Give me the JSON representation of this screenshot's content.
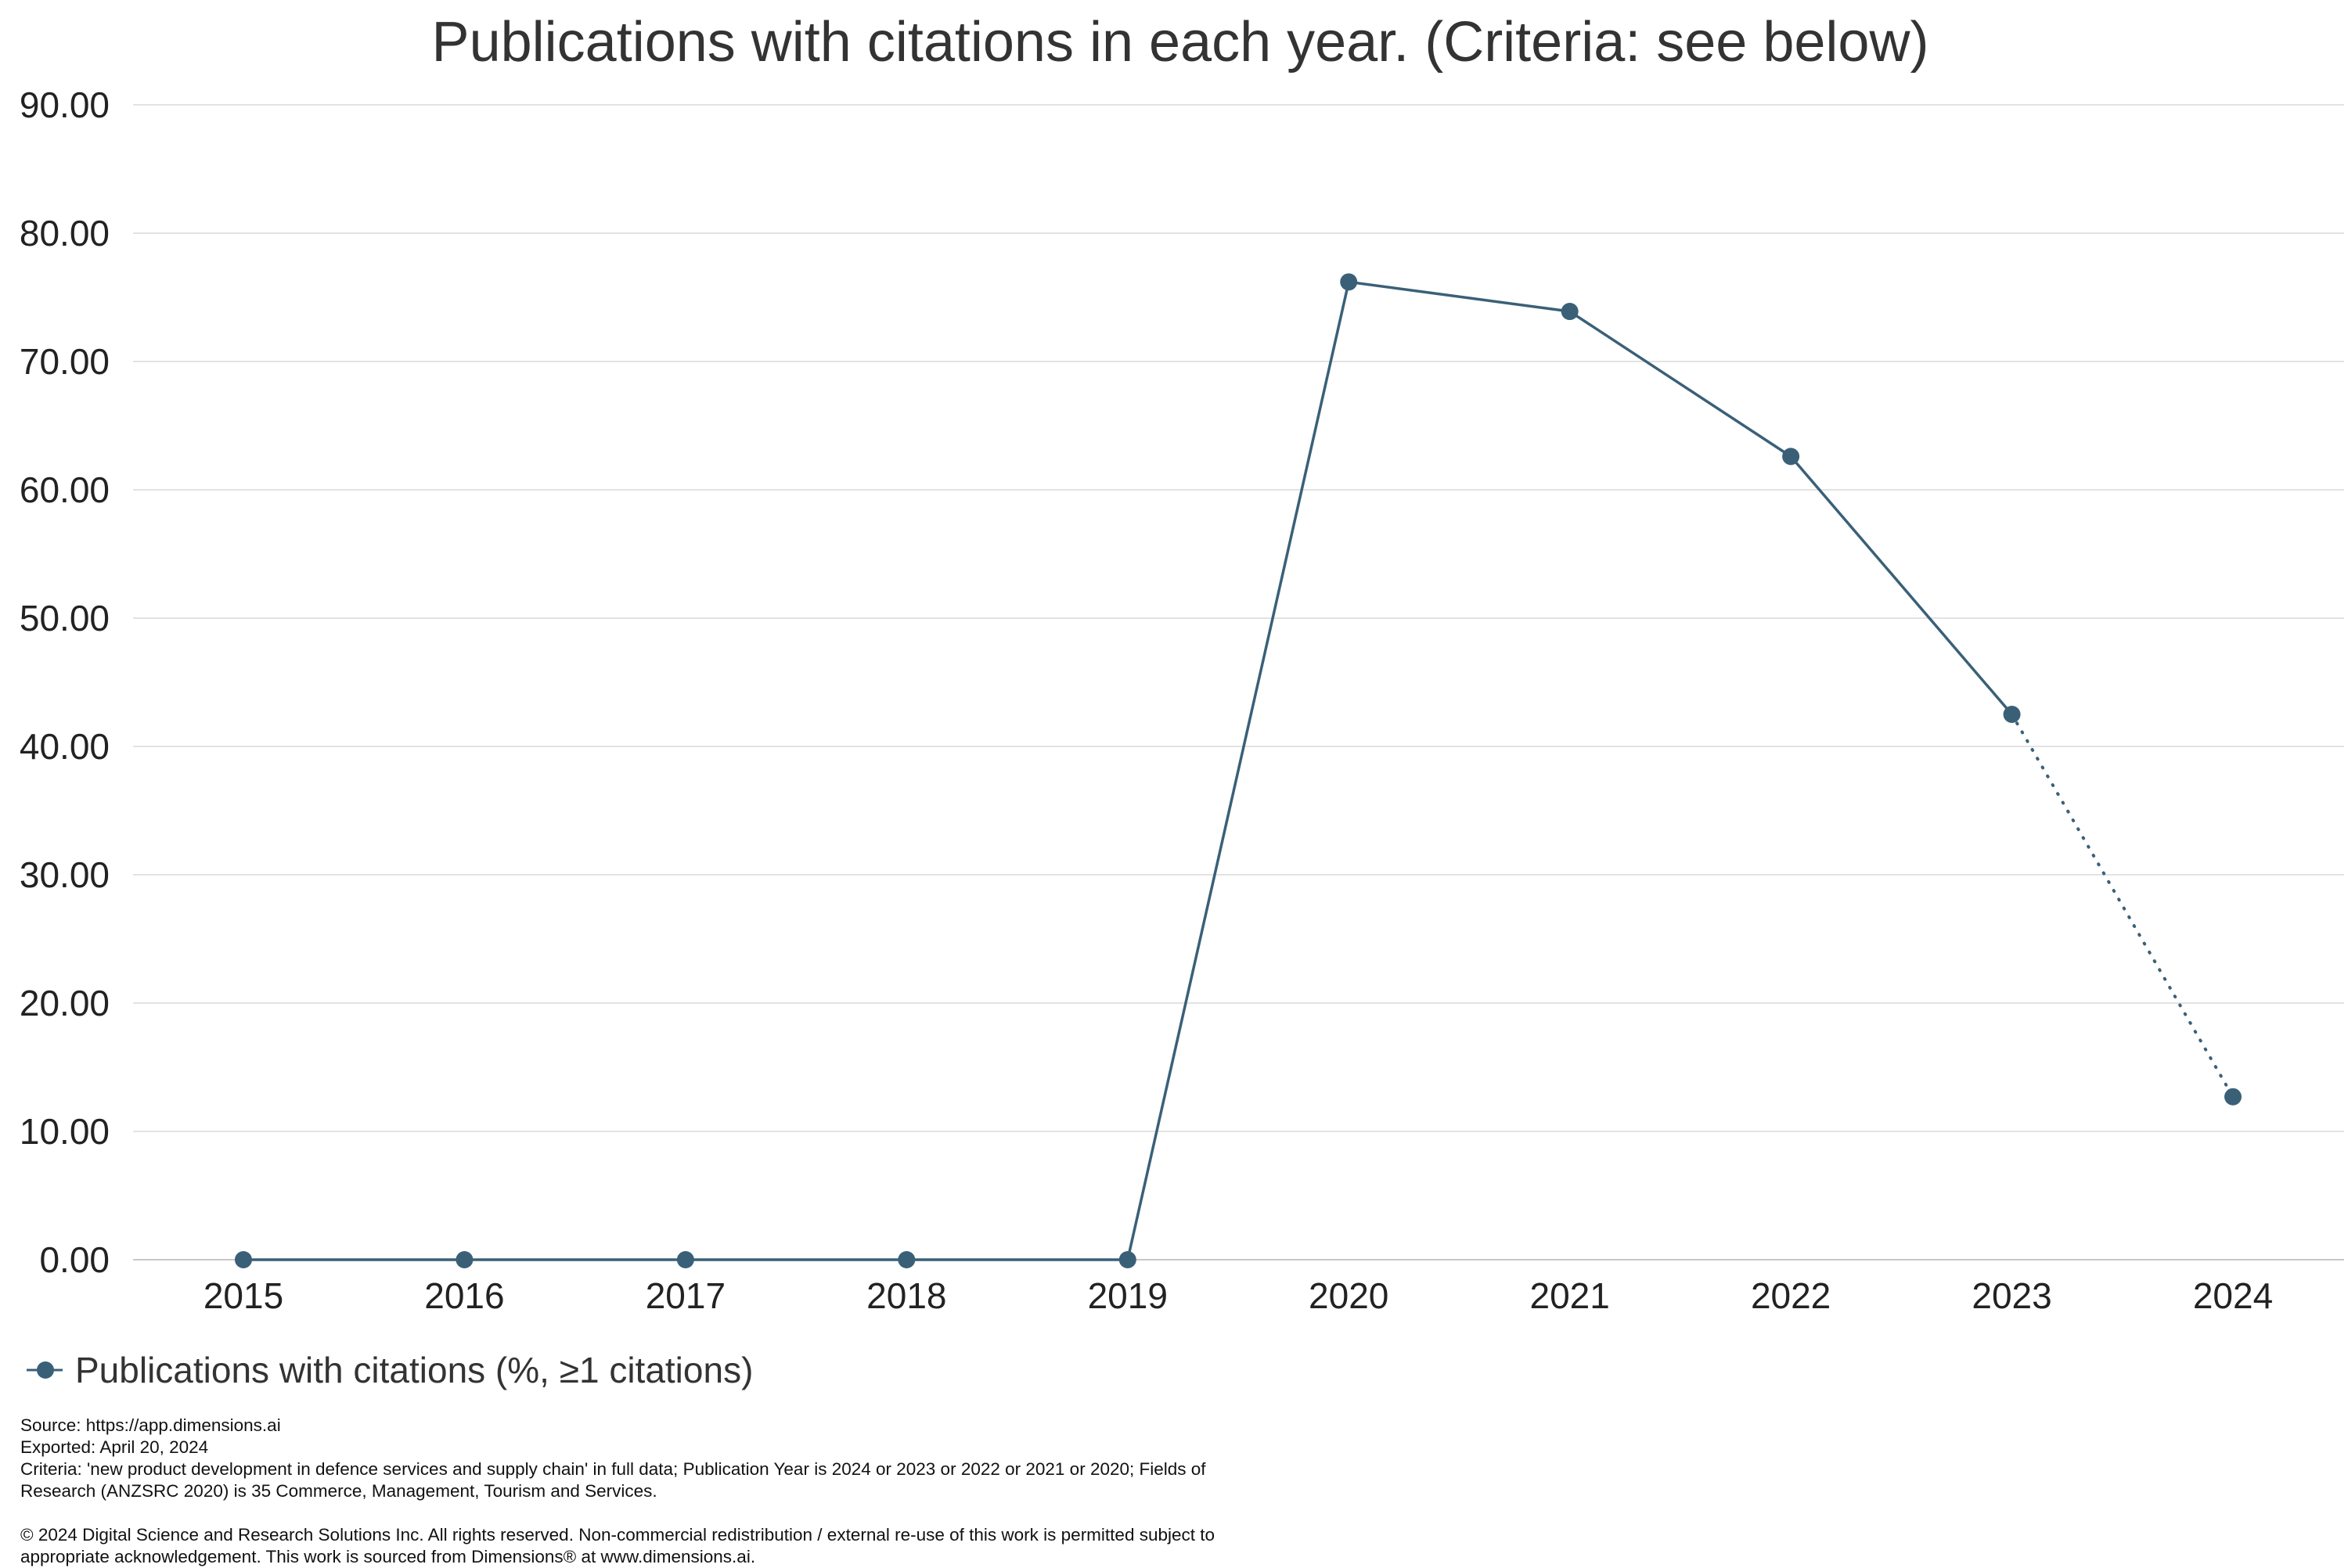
{
  "chart_data": {
    "type": "line",
    "title": "Publications with citations in each year. (Criteria: see below)",
    "categories": [
      "2015",
      "2016",
      "2017",
      "2018",
      "2019",
      "2020",
      "2021",
      "2022",
      "2023",
      "2024"
    ],
    "series": [
      {
        "name": "Publications with citations (%, ≥1 citations)",
        "color": "#3a6078",
        "values": [
          0,
          0,
          0,
          0,
          0,
          76.2,
          73.9,
          62.6,
          42.5,
          12.7
        ],
        "dotted_segments_from_index": 8
      }
    ],
    "ylim": [
      0,
      90
    ],
    "yticks": [
      "0.00",
      "10.00",
      "20.00",
      "30.00",
      "40.00",
      "50.00",
      "60.00",
      "70.00",
      "80.00",
      "90.00"
    ],
    "xlabel": "",
    "ylabel": "",
    "grid": true,
    "legend_position": "bottom-left"
  },
  "notes": {
    "source": "Source: https://app.dimensions.ai",
    "exported": "Exported: April 20, 2024",
    "criteria": "Criteria: 'new product development in defence services and supply chain' in full data; Publication Year is 2024 or 2023 or 2022 or 2021 or 2020; Fields of Research (ANZSRC 2020) is 35 Commerce, Management, Tourism and Services.",
    "copyright": "© 2024 Digital Science and Research Solutions Inc. All rights reserved. Non-commercial redistribution / external re-use of this work is permitted subject to appropriate acknowledgement. This work is sourced from Dimensions® at www.dimensions.ai."
  }
}
